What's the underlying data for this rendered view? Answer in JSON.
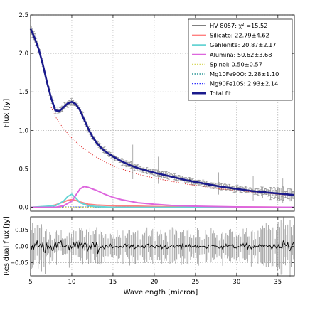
{
  "chart_data": [
    {
      "type": "line",
      "xlabel": "",
      "ylabel": "Flux [Jy]",
      "xlim": [
        5,
        37
      ],
      "ylim": [
        -0.05,
        2.5
      ],
      "x_ticks": [
        5,
        10,
        15,
        20,
        25,
        30,
        35
      ],
      "y_ticks": [
        0.0,
        0.5,
        1.0,
        1.5,
        2.0,
        2.5
      ],
      "y_tick_labels": [
        "0.0",
        "0.5",
        "1.0",
        "1.5",
        "2.0",
        "2.5"
      ],
      "grid": true,
      "legend_position": "top-right",
      "legend": [
        {
          "label": "HV 8057: χ² =15.52",
          "color": "#000000",
          "style": "solid"
        },
        {
          "label": "Silicate: 22.79±4.62",
          "color": "#ff7f7f",
          "style": "solid"
        },
        {
          "label": "Gehlenite: 20.87±2.17",
          "color": "#66d4d4",
          "style": "solid"
        },
        {
          "label": "Alumina: 50.62±3.68",
          "color": "#dd66dd",
          "style": "solid"
        },
        {
          "label": "Spinel: 0.50±0.57",
          "color": "#d8d860",
          "style": "dotted"
        },
        {
          "label": "Mg10Fe90O: 2.28±1.10",
          "color": "#008080",
          "style": "dotted"
        },
        {
          "label": "Mg90Fe10S: 2.93±2.14",
          "color": "#3030ff",
          "style": "dotted"
        },
        {
          "label": "Total fit",
          "color": "#1a1a8c",
          "style": "solid"
        }
      ],
      "series": [
        {
          "key": "total",
          "x": [
            5.0,
            5.5,
            6.0,
            6.5,
            7.0,
            7.5,
            8.0,
            8.5,
            9.0,
            9.5,
            10.0,
            10.5,
            11.0,
            11.5,
            12.0,
            12.5,
            13.0,
            13.5,
            14.0,
            15.0,
            16.0,
            17.0,
            18.0,
            19.0,
            20.0,
            22.0,
            24.0,
            26.0,
            28.0,
            30.0,
            32.0,
            34.0,
            36.0,
            37.0
          ],
          "y": [
            2.32,
            2.2,
            2.05,
            1.85,
            1.62,
            1.42,
            1.26,
            1.25,
            1.3,
            1.35,
            1.37,
            1.34,
            1.26,
            1.14,
            1.02,
            0.92,
            0.84,
            0.78,
            0.73,
            0.66,
            0.6,
            0.55,
            0.51,
            0.48,
            0.45,
            0.4,
            0.35,
            0.31,
            0.27,
            0.24,
            0.21,
            0.19,
            0.17,
            0.16
          ]
        },
        {
          "key": "continuum",
          "x": [
            7.5,
            8.0,
            9.0,
            10.0,
            11.0,
            12.0,
            13.0,
            14.0,
            15.0,
            16.0,
            18.0,
            20.0,
            22.0,
            24.0,
            26.0,
            28.0,
            30.0,
            32.0,
            34.0,
            36.0,
            37.0
          ],
          "y": [
            1.3,
            1.18,
            1.02,
            0.9,
            0.8,
            0.72,
            0.65,
            0.59,
            0.54,
            0.5,
            0.43,
            0.38,
            0.34,
            0.3,
            0.27,
            0.24,
            0.22,
            0.2,
            0.18,
            0.16,
            0.15
          ]
        },
        {
          "key": "silicate",
          "x": [
            5.0,
            7.0,
            8.0,
            8.5,
            9.0,
            9.5,
            10.0,
            10.5,
            11.0,
            12.0,
            13.0,
            15.0,
            18.0,
            20.0,
            37.0
          ],
          "y": [
            0.0,
            0.01,
            0.03,
            0.05,
            0.07,
            0.09,
            0.1,
            0.09,
            0.07,
            0.04,
            0.03,
            0.02,
            0.015,
            0.01,
            0.0
          ]
        },
        {
          "key": "gehlenite",
          "x": [
            5.0,
            8.0,
            9.0,
            9.5,
            10.0,
            10.5,
            11.0,
            12.0,
            13.0,
            15.0,
            37.0
          ],
          "y": [
            0.0,
            0.02,
            0.08,
            0.14,
            0.17,
            0.12,
            0.06,
            0.02,
            0.01,
            0.0,
            0.0
          ]
        },
        {
          "key": "alumina",
          "x": [
            5.0,
            8.0,
            9.0,
            10.0,
            10.5,
            11.0,
            11.5,
            12.0,
            13.0,
            14.0,
            15.0,
            16.0,
            18.0,
            20.0,
            22.0,
            25.0,
            30.0,
            37.0
          ],
          "y": [
            0.0,
            0.0,
            0.02,
            0.08,
            0.16,
            0.24,
            0.27,
            0.26,
            0.22,
            0.17,
            0.13,
            0.1,
            0.06,
            0.04,
            0.025,
            0.015,
            0.005,
            0.0
          ]
        },
        {
          "key": "spinel",
          "x": [
            5.0,
            12.0,
            13.0,
            14.0,
            16.0,
            37.0
          ],
          "y": [
            0.0,
            0.0,
            0.005,
            0.004,
            0.0,
            0.0
          ]
        },
        {
          "key": "mg10fe90o",
          "x": [
            5.0,
            37.0
          ],
          "y": [
            0.003,
            0.002
          ]
        },
        {
          "key": "mg90fe10s",
          "x": [
            5.0,
            37.0
          ],
          "y": [
            0.004,
            0.003
          ]
        }
      ]
    },
    {
      "type": "line",
      "xlabel": "Wavelength [micron]",
      "ylabel": "Residual flux [Jy]",
      "xlim": [
        5,
        37
      ],
      "ylim": [
        -0.09,
        0.09
      ],
      "x_ticks": [
        5,
        10,
        15,
        20,
        25,
        30,
        35
      ],
      "y_ticks": [
        -0.05,
        0.0,
        0.05
      ],
      "y_tick_labels": [
        "−0.05",
        "0.00",
        "0.05"
      ],
      "grid": true
    }
  ]
}
